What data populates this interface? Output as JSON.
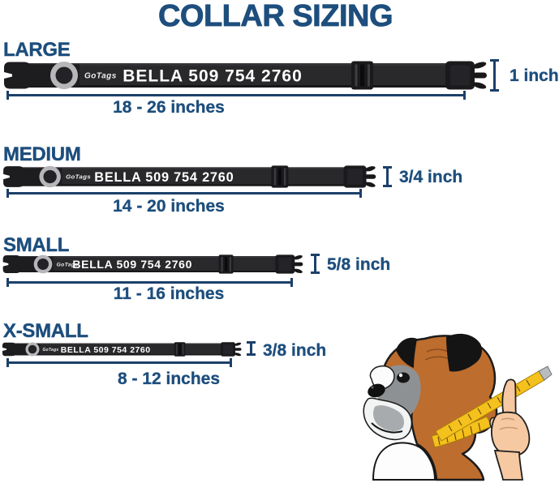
{
  "title": "COLLAR SIZING",
  "colors": {
    "heading_blue": "#1d4e7d",
    "measure_line_blue": "#1c406a",
    "collar_black": "#29292c",
    "collar_text_white": "#ffffff",
    "tape_yellow": "#f4c11d",
    "dog_brown": "#bd6d2e"
  },
  "sizes": [
    {
      "label": "LARGE",
      "brand": "GoTags",
      "collar_text": "BELLA 509 754 2760",
      "range": "18 - 26 inches",
      "width_label": "1 inch"
    },
    {
      "label": "MEDIUM",
      "brand": "GoTags",
      "collar_text": "BELLA 509 754 2760",
      "range": "14 - 20 inches",
      "width_label": "3/4 inch"
    },
    {
      "label": "SMALL",
      "brand": "GoTags",
      "collar_text": "BELLA 509 754 2760",
      "range": "11 - 16 inches",
      "width_label": "5/8 inch"
    },
    {
      "label": "X-SMALL",
      "brand": "GoTags",
      "collar_text": "BELLA 509 754 2760",
      "range": "8 - 12 inches",
      "width_label": "3/8 inch"
    }
  ]
}
